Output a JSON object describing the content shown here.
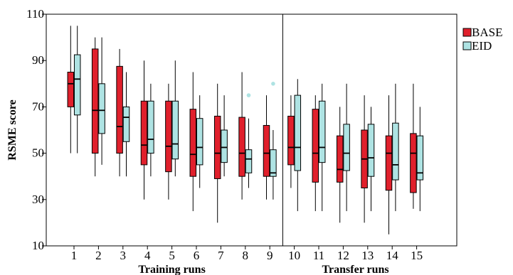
{
  "chart_data": {
    "type": "box",
    "title": "",
    "ylabel": "RSME score",
    "ylim": [
      10,
      110
    ],
    "yticks": [
      10,
      30,
      50,
      70,
      90,
      110
    ],
    "categories": [
      "1",
      "2",
      "3",
      "4",
      "5",
      "6",
      "7",
      "8",
      "9",
      "10",
      "11",
      "12",
      "13",
      "14",
      "15"
    ],
    "groups": [
      {
        "label": "Training runs",
        "categories": [
          "1",
          "2",
          "3",
          "4",
          "5",
          "6",
          "7",
          "8",
          "9"
        ]
      },
      {
        "label": "Transfer runs",
        "categories": [
          "10",
          "11",
          "12",
          "13",
          "14",
          "15"
        ]
      }
    ],
    "grid": false,
    "legend": "top-right",
    "series": [
      {
        "name": "BASE",
        "color": "#e0202c",
        "boxes": [
          {
            "whisker_low": 50,
            "q1": 70,
            "median": 80,
            "q3": 85,
            "whisker_high": 105
          },
          {
            "whisker_low": 40,
            "q1": 50,
            "median": 68.5,
            "q3": 95,
            "whisker_high": 100
          },
          {
            "whisker_low": 40,
            "q1": 50,
            "median": 61.5,
            "q3": 87.5,
            "whisker_high": 95
          },
          {
            "whisker_low": 30,
            "q1": 45,
            "median": 53.5,
            "q3": 72.5,
            "whisker_high": 90
          },
          {
            "whisker_low": 30,
            "q1": 42,
            "median": 53,
            "q3": 72.5,
            "whisker_high": 80
          },
          {
            "whisker_low": 25,
            "q1": 40,
            "median": 49.5,
            "q3": 69,
            "whisker_high": 85
          },
          {
            "whisker_low": 20,
            "q1": 39,
            "median": 50,
            "q3": 66,
            "whisker_high": 80
          },
          {
            "whisker_low": 30,
            "q1": 40,
            "median": 50,
            "q3": 65.5,
            "whisker_high": 85
          },
          {
            "whisker_low": 30,
            "q1": 40,
            "median": 50,
            "q3": 62,
            "whisker_high": 75
          },
          {
            "whisker_low": 35,
            "q1": 45,
            "median": 52.5,
            "q3": 66,
            "whisker_high": 75
          },
          {
            "whisker_low": 25,
            "q1": 37.5,
            "median": 50,
            "q3": 69,
            "whisker_high": 75
          },
          {
            "whisker_low": 20,
            "q1": 37.5,
            "median": 43,
            "q3": 57.5,
            "whisker_high": 70
          },
          {
            "whisker_low": 20,
            "q1": 35,
            "median": 47.5,
            "q3": 60,
            "whisker_high": 75
          },
          {
            "whisker_low": 15,
            "q1": 34,
            "median": 50,
            "q3": 57.5,
            "whisker_high": 75
          },
          {
            "whisker_low": 26,
            "q1": 33,
            "median": 50,
            "q3": 58.5,
            "whisker_high": 80
          }
        ],
        "outliers": []
      },
      {
        "name": "EID",
        "color": "#aee3e3",
        "boxes": [
          {
            "whisker_low": 50,
            "q1": 66.5,
            "median": 82,
            "q3": 92.5,
            "whisker_high": 105
          },
          {
            "whisker_low": 45,
            "q1": 58.5,
            "median": 68.5,
            "q3": 80,
            "whisker_high": 100
          },
          {
            "whisker_low": 40,
            "q1": 55,
            "median": 65.5,
            "q3": 70,
            "whisker_high": 85
          },
          {
            "whisker_low": 40,
            "q1": 50,
            "median": 56,
            "q3": 72.5,
            "whisker_high": 80
          },
          {
            "whisker_low": 40,
            "q1": 47.5,
            "median": 54,
            "q3": 72.5,
            "whisker_high": 90
          },
          {
            "whisker_low": 35,
            "q1": 45,
            "median": 52.5,
            "q3": 65,
            "whisker_high": 75
          },
          {
            "whisker_low": 40,
            "q1": 46,
            "median": 52.5,
            "q3": 60,
            "whisker_high": 75
          },
          {
            "whisker_low": 35,
            "q1": 41.5,
            "median": 47.5,
            "q3": 51.5,
            "whisker_high": 65
          },
          {
            "whisker_low": 30,
            "q1": 40,
            "median": 41.5,
            "q3": 51.5,
            "whisker_high": 60
          },
          {
            "whisker_low": 25,
            "q1": 42.5,
            "median": 52.5,
            "q3": 75,
            "whisker_high": 82
          },
          {
            "whisker_low": 25,
            "q1": 46,
            "median": 52.5,
            "q3": 72.5,
            "whisker_high": 80
          },
          {
            "whisker_low": 25,
            "q1": 42.5,
            "median": 50,
            "q3": 62.5,
            "whisker_high": 80
          },
          {
            "whisker_low": 25,
            "q1": 40,
            "median": 48,
            "q3": 62.5,
            "whisker_high": 70
          },
          {
            "whisker_low": 25,
            "q1": 38.5,
            "median": 45,
            "q3": 63,
            "whisker_high": 80
          },
          {
            "whisker_low": 25,
            "q1": 38.5,
            "median": 41.5,
            "q3": 57.5,
            "whisker_high": 70
          }
        ],
        "outliers": [
          {
            "category": "8",
            "value": 75
          },
          {
            "category": "9",
            "value": 80
          }
        ]
      }
    ]
  }
}
